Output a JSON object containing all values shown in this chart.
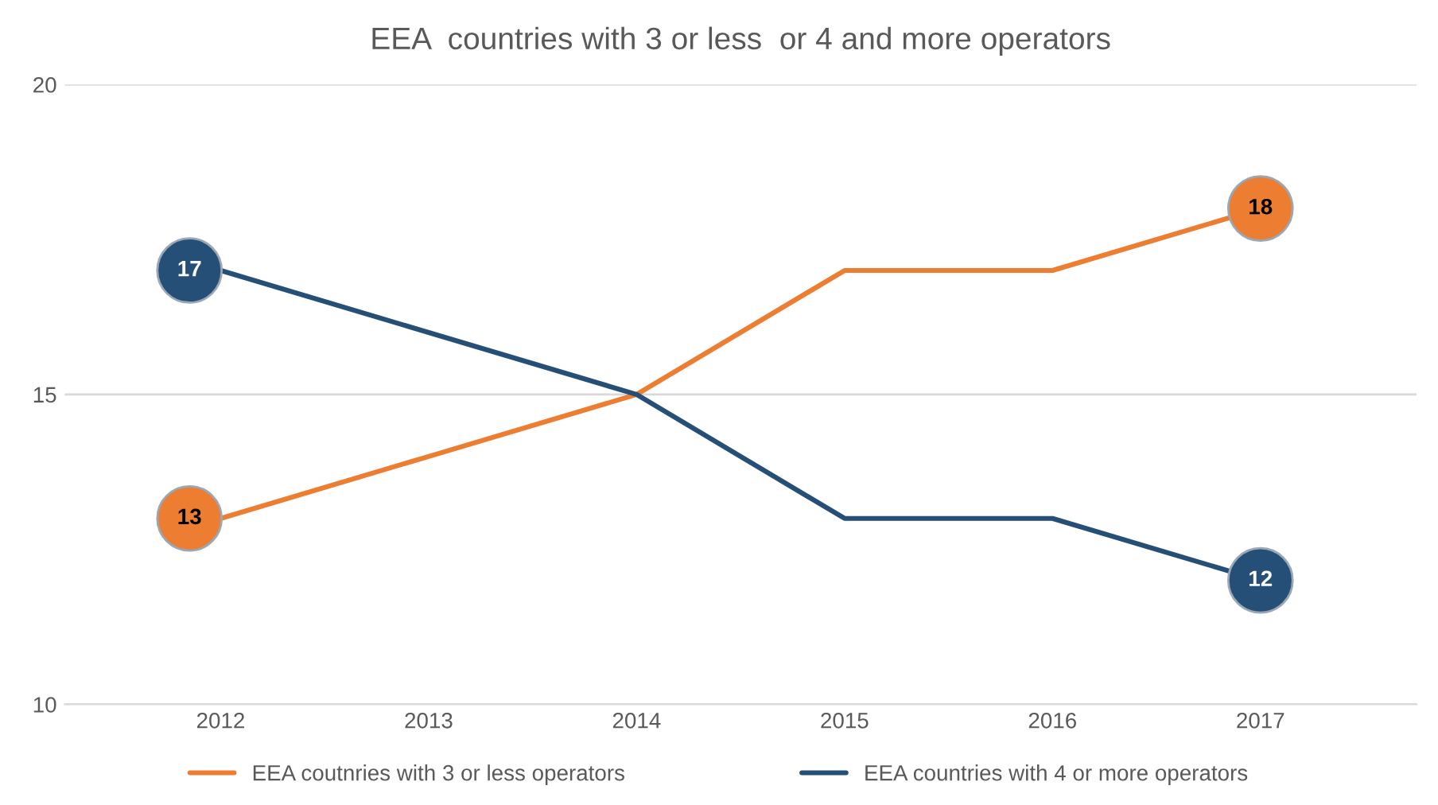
{
  "chart_data": {
    "type": "line",
    "title": "EEA  countries with 3 or less  or 4 and more operators",
    "categories": [
      "2012",
      "2013",
      "2014",
      "2015",
      "2016",
      "2017"
    ],
    "series": [
      {
        "name": "EEA coutnries with 3 or less operators",
        "color": "#ed7d31",
        "values": [
          13,
          14,
          15,
          17,
          17,
          18
        ],
        "value_labels": [
          "13",
          null,
          null,
          null,
          null,
          "18"
        ]
      },
      {
        "name": "EEA countries with 4 or more operators",
        "color": "#264f78",
        "values": [
          17,
          16,
          15,
          13,
          13,
          12
        ],
        "value_labels": [
          "17",
          null,
          null,
          null,
          null,
          "12"
        ]
      }
    ],
    "ylim": [
      10,
      20
    ],
    "yticks": [
      10,
      15,
      20
    ],
    "grid": "y",
    "legend": "bottom",
    "marker": "none",
    "line_style": "solid"
  }
}
